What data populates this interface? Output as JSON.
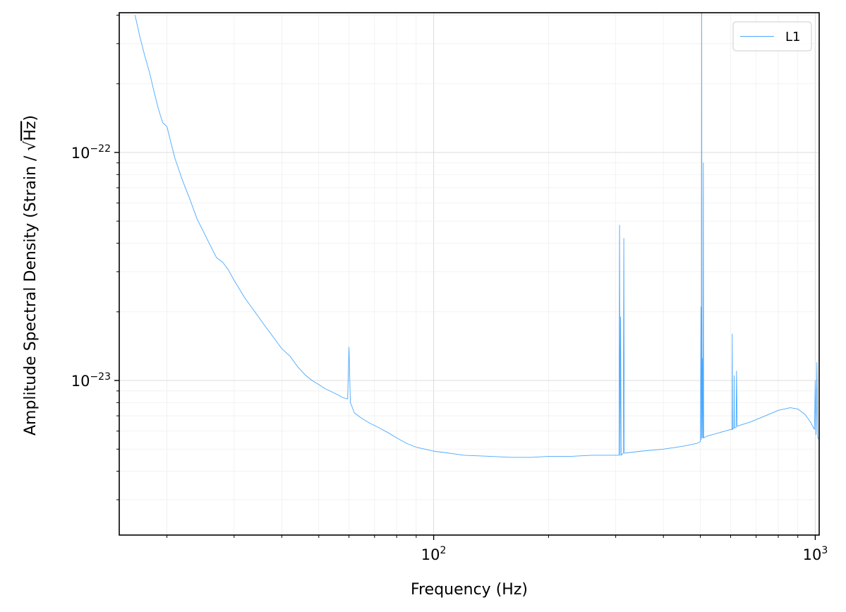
{
  "chart_data": {
    "type": "line",
    "title": "",
    "xlabel": "Frequency (Hz)",
    "ylabel_prefix": "Amplitude Spectral Density (Strain / ",
    "ylabel_sqrt": "√",
    "ylabel_unit": "Hz",
    "ylabel_suffix": ")",
    "xscale": "log",
    "yscale": "log",
    "xlim": [
      15,
      1024
    ],
    "ylim": [
      2.1e-24,
      4.1e-22
    ],
    "grid": true,
    "legend_position": "top-right",
    "x_ticks": [
      {
        "value": 100,
        "base": "10",
        "exp": "2"
      },
      {
        "value": 1000,
        "base": "10",
        "exp": "3"
      }
    ],
    "y_ticks": [
      {
        "value": 1e-23,
        "base": "10",
        "exp": "−23"
      },
      {
        "value": 1e-22,
        "base": "10",
        "exp": "−22"
      }
    ],
    "series": [
      {
        "name": "L1",
        "color": "#4aa8ff",
        "points": [
          [
            16.5,
            4e-22
          ],
          [
            17.0,
            3.2e-22
          ],
          [
            17.5,
            2.65e-22
          ],
          [
            18.0,
            2.25e-22
          ],
          [
            18.5,
            1.85e-22
          ],
          [
            19.0,
            1.55e-22
          ],
          [
            19.5,
            1.35e-22
          ],
          [
            20.0,
            1.3e-22
          ],
          [
            20.5,
            1.1e-22
          ],
          [
            21.0,
            9.4e-23
          ],
          [
            22.0,
            7.5e-23
          ],
          [
            23.0,
            6.2e-23
          ],
          [
            24.0,
            5.1e-23
          ],
          [
            25.0,
            4.45e-23
          ],
          [
            26.0,
            3.9e-23
          ],
          [
            27.0,
            3.45e-23
          ],
          [
            28.0,
            3.3e-23
          ],
          [
            29.0,
            3.05e-23
          ],
          [
            30.0,
            2.75e-23
          ],
          [
            32.0,
            2.3e-23
          ],
          [
            34.0,
            2e-23
          ],
          [
            36.0,
            1.75e-23
          ],
          [
            38.0,
            1.55e-23
          ],
          [
            40.0,
            1.38e-23
          ],
          [
            42.0,
            1.28e-23
          ],
          [
            44.0,
            1.15e-23
          ],
          [
            46.0,
            1.06e-23
          ],
          [
            48.0,
            1e-23
          ],
          [
            50.0,
            9.6e-24
          ],
          [
            52.0,
            9.2e-24
          ],
          [
            55.0,
            8.8e-24
          ],
          [
            58.0,
            8.4e-24
          ],
          [
            59.5,
            8.3e-24
          ],
          [
            60.0,
            1.4e-23
          ],
          [
            60.5,
            8e-24
          ],
          [
            62.0,
            7.2e-24
          ],
          [
            65.0,
            6.8e-24
          ],
          [
            68.0,
            6.5e-24
          ],
          [
            72.0,
            6.2e-24
          ],
          [
            76.0,
            5.9e-24
          ],
          [
            80.0,
            5.6e-24
          ],
          [
            85.0,
            5.3e-24
          ],
          [
            90.0,
            5.1e-24
          ],
          [
            100.0,
            4.9e-24
          ],
          [
            110.0,
            4.8e-24
          ],
          [
            120.0,
            4.7e-24
          ],
          [
            140.0,
            4.65e-24
          ],
          [
            160.0,
            4.6e-24
          ],
          [
            180.0,
            4.6e-24
          ],
          [
            200.0,
            4.65e-24
          ],
          [
            230.0,
            4.65e-24
          ],
          [
            260.0,
            4.7e-24
          ],
          [
            300.0,
            4.7e-24
          ],
          [
            306.0,
            4.7e-24
          ],
          [
            307.0,
            4.8e-23
          ],
          [
            308.0,
            4.7e-24
          ],
          [
            309.0,
            1.9e-23
          ],
          [
            310.0,
            4.7e-24
          ],
          [
            314.0,
            4.8e-24
          ],
          [
            315.0,
            4.2e-23
          ],
          [
            316.0,
            4.8e-24
          ],
          [
            350.0,
            4.9e-24
          ],
          [
            400.0,
            5e-24
          ],
          [
            450.0,
            5.15e-24
          ],
          [
            490.0,
            5.3e-24
          ],
          [
            500.0,
            5.4e-24
          ],
          [
            502.0,
            2.1e-23
          ],
          [
            503.0,
            5.5e-24
          ],
          [
            504.0,
            4.1e-22
          ],
          [
            505.0,
            5.6e-24
          ],
          [
            507.0,
            1.25e-23
          ],
          [
            508.0,
            5.6e-24
          ],
          [
            509.0,
            9e-23
          ],
          [
            510.0,
            5.6e-24
          ],
          [
            520.0,
            5.7e-24
          ],
          [
            560.0,
            5.9e-24
          ],
          [
            600.0,
            6.1e-24
          ],
          [
            605.0,
            6.1e-24
          ],
          [
            606.0,
            1.6e-23
          ],
          [
            607.0,
            6.1e-24
          ],
          [
            612.0,
            6.2e-24
          ],
          [
            613.0,
            1.05e-23
          ],
          [
            614.0,
            6.2e-24
          ],
          [
            620.0,
            6.2e-24
          ],
          [
            622.0,
            1.1e-23
          ],
          [
            624.0,
            6.3e-24
          ],
          [
            680.0,
            6.6e-24
          ],
          [
            740.0,
            7e-24
          ],
          [
            800.0,
            7.4e-24
          ],
          [
            860.0,
            7.6e-24
          ],
          [
            900.0,
            7.5e-24
          ],
          [
            940.0,
            7.1e-24
          ],
          [
            970.0,
            6.6e-24
          ],
          [
            995.0,
            6.1e-24
          ],
          [
            1000.0,
            1e-23
          ],
          [
            1005.0,
            5.8e-24
          ],
          [
            1010.0,
            1.2e-23
          ],
          [
            1015.0,
            5.6e-24
          ],
          [
            1024.0,
            5.5e-24
          ]
        ]
      }
    ]
  }
}
